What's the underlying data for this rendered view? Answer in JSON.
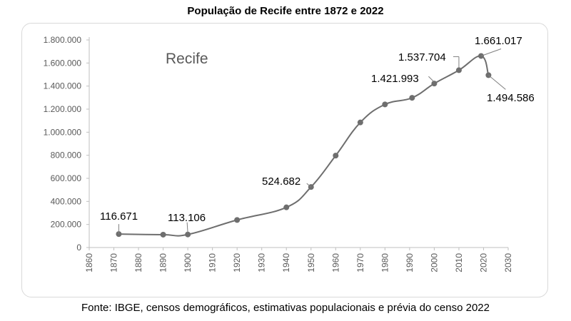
{
  "chart_data": {
    "type": "line",
    "title": "População de Recife entre 1872 e 2022",
    "series_label": "Recife",
    "source": "Fonte: IBGE, censos demográficos, estimativas populacionais e prévia do censo 2022",
    "x": [
      1872,
      1890,
      1900,
      1920,
      1940,
      1950,
      1960,
      1970,
      1980,
      1991,
      2000,
      2010,
      2019,
      2022
    ],
    "values": [
      116671,
      111556,
      113106,
      238843,
      348424,
      524682,
      797234,
      1084459,
      1240937,
      1298229,
      1421993,
      1537704,
      1661017,
      1494586
    ],
    "xlim": [
      1860,
      2030
    ],
    "ylim": [
      0,
      1800000
    ],
    "x_ticks": [
      "1860",
      "1870",
      "1880",
      "1890",
      "1900",
      "1910",
      "1920",
      "1930",
      "1940",
      "1950",
      "1960",
      "1970",
      "1980",
      "1990",
      "2000",
      "2010",
      "2020",
      "2030"
    ],
    "y_ticks": [
      "0",
      "200.000",
      "400.000",
      "600.000",
      "800.000",
      "1.000.000",
      "1.200.000",
      "1.400.000",
      "1.600.000",
      "1.800.000"
    ],
    "annotations": [
      {
        "x": 1872,
        "value": 116671,
        "label": "116.671"
      },
      {
        "x": 1900,
        "value": 113106,
        "label": "113.106"
      },
      {
        "x": 1950,
        "value": 524682,
        "label": "524.682"
      },
      {
        "x": 2000,
        "value": 1421993,
        "label": "1.421.993"
      },
      {
        "x": 2010,
        "value": 1537704,
        "label": "1.537.704"
      },
      {
        "x": 2019,
        "value": 1661017,
        "label": "1.661.017"
      },
      {
        "x": 2022,
        "value": 1494586,
        "label": "1.494.586"
      }
    ],
    "line_color": "#6e6e6e",
    "grid": false
  }
}
